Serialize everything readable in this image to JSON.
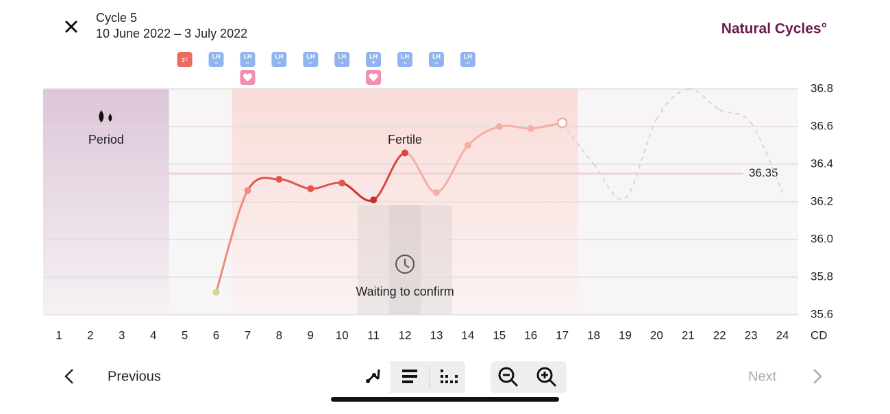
{
  "header": {
    "title": "Cycle 5",
    "dates": "10 June 2022 – 3 July 2022",
    "logo": "Natural Cycles°"
  },
  "chart_data": {
    "type": "line",
    "x": [
      1,
      2,
      3,
      4,
      5,
      6,
      7,
      8,
      9,
      10,
      11,
      12,
      13,
      14,
      15,
      16,
      17,
      18,
      19,
      20,
      21,
      22,
      23,
      24
    ],
    "series": [
      {
        "name": "Temperature",
        "color": "#e0554c",
        "values": [
          null,
          null,
          null,
          null,
          null,
          35.72,
          36.26,
          36.32,
          36.27,
          36.3,
          36.21,
          36.46,
          36.25,
          36.5,
          36.6,
          36.59,
          36.62,
          null,
          null,
          null,
          null,
          null,
          null,
          null
        ],
        "point_colors": [
          null,
          null,
          null,
          null,
          null,
          "#c8dc8c",
          "#ef8a7a",
          "#e0554c",
          "#e0554c",
          "#e0554c",
          "#c9302c",
          "#d9453d",
          "#f5aea5",
          "#f5aea5",
          "#f5aea5",
          "#f5aea5",
          "#f5aea5",
          null,
          null,
          null,
          null,
          null,
          null,
          null
        ]
      },
      {
        "name": "Prediction",
        "color": "#d6d6d6",
        "values": [
          null,
          null,
          null,
          null,
          null,
          null,
          null,
          null,
          null,
          null,
          null,
          null,
          null,
          null,
          null,
          null,
          36.62,
          36.4,
          36.22,
          36.64,
          36.8,
          36.69,
          36.62,
          36.25
        ]
      }
    ],
    "xlim": [
      0.5,
      24.5
    ],
    "xticks": [
      1,
      2,
      3,
      4,
      5,
      6,
      7,
      8,
      9,
      10,
      11,
      12,
      13,
      14,
      15,
      16,
      17,
      18,
      19,
      20,
      21,
      22,
      23,
      24
    ],
    "x_unit": "CD",
    "ylim": [
      35.6,
      36.8
    ],
    "yticks": [
      35.6,
      35.8,
      {
        "value": 36,
        "label": "36.0"
      },
      36.2,
      36.4,
      36.6,
      36.8
    ],
    "grid": true,
    "coverline": 36.35,
    "period": {
      "label": "Period",
      "days": [
        1,
        4
      ]
    },
    "fertile": {
      "label": "Fertile",
      "days": [
        7,
        17
      ]
    },
    "waiting": {
      "label": "Waiting to confirm",
      "days": [
        11,
        13
      ]
    },
    "sleep_icon": {
      "day": 5,
      "label": "zᶻ"
    },
    "lh_tests": [
      {
        "day": 6,
        "label": "LH",
        "result": "–"
      },
      {
        "day": 7,
        "label": "LH",
        "result": "–"
      },
      {
        "day": 8,
        "label": "LH",
        "result": "–"
      },
      {
        "day": 9,
        "label": "LH",
        "result": "–"
      },
      {
        "day": 10,
        "label": "LH",
        "result": "–"
      },
      {
        "day": 11,
        "label": "LH",
        "result": "+"
      },
      {
        "day": 12,
        "label": "LH",
        "result": "–"
      },
      {
        "day": 13,
        "label": "LH",
        "result": "–"
      },
      {
        "day": 14,
        "label": "LH",
        "result": "–"
      }
    ],
    "heart_days": [
      7,
      11
    ]
  },
  "footer": {
    "previous": "Previous",
    "next": "Next"
  }
}
